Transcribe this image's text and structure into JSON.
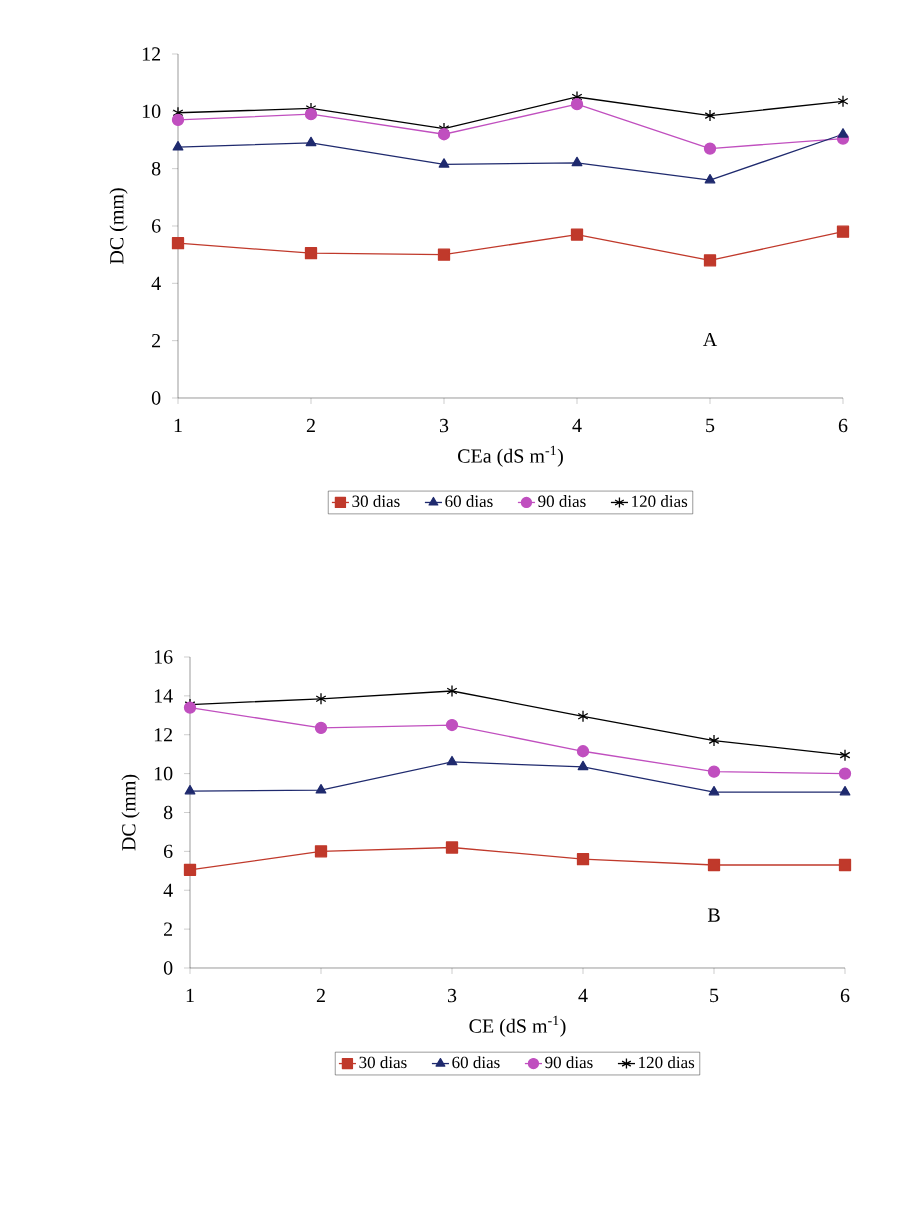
{
  "chart_data": [
    {
      "type": "line",
      "xlabel": "CEa (dS m$^{-1}$)",
      "ylabel": "DC (mm)",
      "annotations": [
        "A"
      ],
      "x": [
        1,
        2,
        3,
        4,
        5,
        6
      ],
      "xlim": [
        1,
        6
      ],
      "xticks": [
        1,
        2,
        3,
        4,
        5,
        6
      ],
      "ylim": [
        0,
        12
      ],
      "yticks": [
        0,
        2,
        4,
        6,
        8,
        10,
        12
      ],
      "legend": "bottom",
      "grid": false,
      "series": [
        {
          "name": "30 dias",
          "color": "#c0392b",
          "marker": "square",
          "values": [
            5.4,
            5.05,
            5.0,
            5.7,
            4.8,
            5.8
          ]
        },
        {
          "name": "60 dias",
          "color": "#1f2a6e",
          "marker": "triangle",
          "values": [
            8.75,
            8.9,
            8.15,
            8.2,
            7.6,
            9.2
          ]
        },
        {
          "name": "90 dias",
          "color": "#c04fbf",
          "marker": "circle",
          "values": [
            9.7,
            9.9,
            9.2,
            10.25,
            8.7,
            9.05
          ]
        },
        {
          "name": "120 dias",
          "color": "#000000",
          "marker": "cross",
          "values": [
            9.95,
            10.1,
            9.4,
            10.5,
            9.85,
            10.35
          ]
        }
      ]
    },
    {
      "type": "line",
      "xlabel": "CE (dS m$^{-1}$)",
      "ylabel": "DC (mm)",
      "annotations": [
        "B"
      ],
      "x": [
        1,
        2,
        3,
        4,
        5,
        6
      ],
      "xlim": [
        1,
        6
      ],
      "xticks": [
        1,
        2,
        3,
        4,
        5,
        6
      ],
      "ylim": [
        0,
        16
      ],
      "yticks": [
        0,
        2,
        4,
        6,
        8,
        10,
        12,
        14,
        16
      ],
      "legend": "bottom",
      "grid": false,
      "series": [
        {
          "name": "30 dias",
          "color": "#c0392b",
          "marker": "square",
          "values": [
            5.05,
            6.0,
            6.2,
            5.6,
            5.3,
            5.3
          ]
        },
        {
          "name": "60 dias",
          "color": "#1f2a6e",
          "marker": "triangle",
          "values": [
            9.1,
            9.15,
            10.6,
            10.35,
            9.05,
            9.05
          ]
        },
        {
          "name": "90 dias",
          "color": "#c04fbf",
          "marker": "circle",
          "values": [
            13.4,
            12.35,
            12.5,
            11.15,
            10.1,
            10.0
          ]
        },
        {
          "name": "120 dias",
          "color": "#000000",
          "marker": "cross",
          "values": [
            13.55,
            13.85,
            14.25,
            12.95,
            11.7,
            10.95
          ]
        }
      ]
    }
  ]
}
